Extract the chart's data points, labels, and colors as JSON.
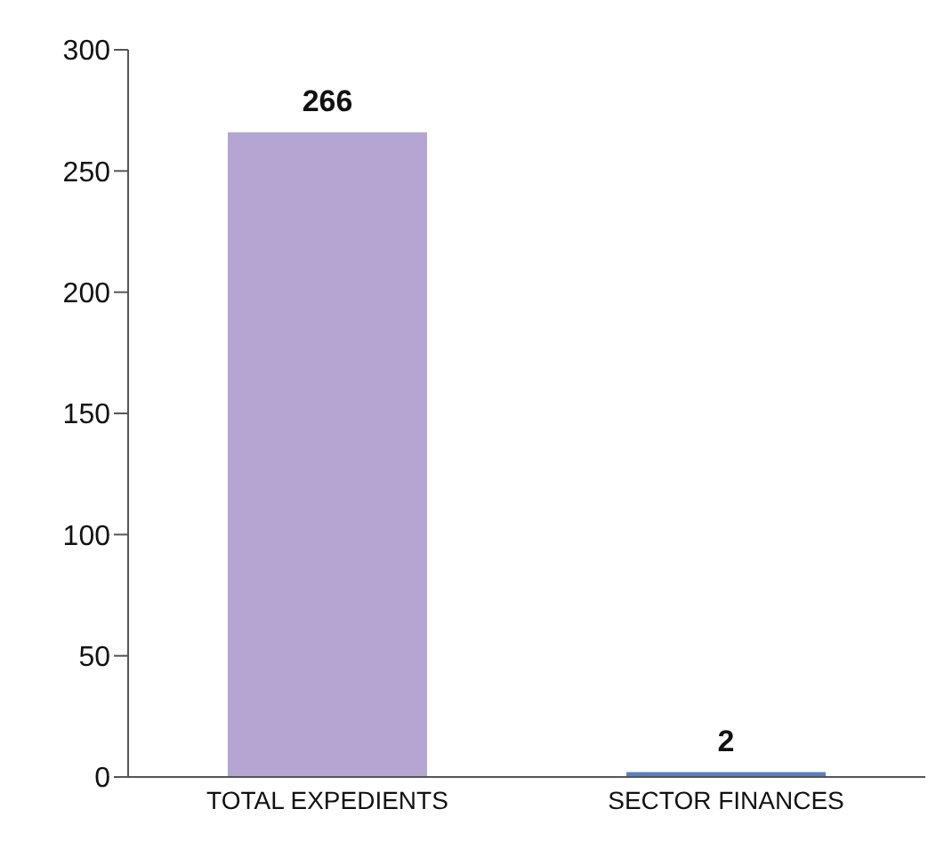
{
  "chart_data": {
    "type": "bar",
    "categories": [
      "TOTAL EXPEDIENTS",
      "SECTOR FINANCES"
    ],
    "values": [
      266,
      2
    ],
    "colors": [
      "#b4a5d2",
      "#5a7fc0"
    ],
    "ylim": [
      0,
      300
    ],
    "yticks": [
      0,
      50,
      100,
      150,
      200,
      250,
      300
    ],
    "data_labels": true
  }
}
